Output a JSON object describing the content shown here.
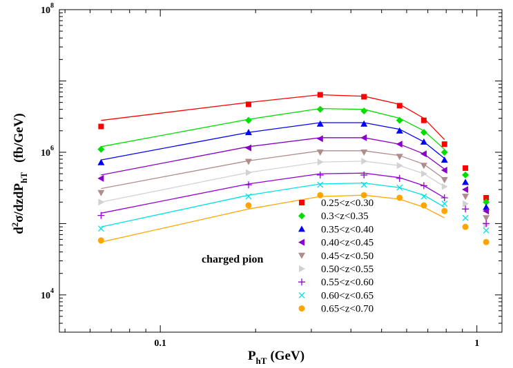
{
  "chart_data": {
    "type": "scatter",
    "title": "",
    "xlabel": "P",
    "xlabel_sub": "hT",
    "xlabel_unit": "(GeV)",
    "ylabel_main": "d",
    "ylabel_sup": "2",
    "ylabel_mid": "σ/dzdP",
    "ylabel_sub": "hT",
    "ylabel_unit": "(fb/GeV)",
    "xscale": "log",
    "yscale": "log",
    "xlim": [
      0.048,
      1.2
    ],
    "ylim": [
      3000,
      100000000
    ],
    "x_ticks": [
      {
        "value": 0.1,
        "label": "0.1"
      },
      {
        "value": 1,
        "label": "1"
      }
    ],
    "y_ticks": [
      {
        "value": 10000,
        "base": "10",
        "exp": "4"
      },
      {
        "value": 1000000,
        "base": "10",
        "exp": "6"
      },
      {
        "value": 100000000,
        "base": "10",
        "exp": "8"
      }
    ],
    "grid": false,
    "legend_position": "bottom-center",
    "annotation": "charged pion",
    "x": [
      0.065,
      0.19,
      0.32,
      0.44,
      0.57,
      0.68,
      0.79,
      0.92,
      1.07
    ],
    "curve_x": [
      0.065,
      0.19,
      0.32,
      0.44,
      0.57,
      0.68,
      0.79
    ],
    "series": [
      {
        "name": "0.25<z<0.30",
        "color": "#ff0000",
        "marker": "square",
        "values": [
          2300000,
          4700000,
          6400000,
          6000000,
          4500000,
          2800000,
          1300000,
          600000,
          230000
        ],
        "curve": [
          2800000,
          5000000,
          6400000,
          6100000,
          4700000,
          3000000,
          1500000
        ]
      },
      {
        "name": "0.3<z<0.35",
        "color": "#00dd00",
        "marker": "diamond",
        "values": [
          1100000,
          2800000,
          4000000,
          3800000,
          2800000,
          1900000,
          1000000,
          480000,
          200000
        ],
        "curve": [
          1200000,
          2900000,
          4100000,
          4000000,
          3000000,
          2000000,
          1100000
        ]
      },
      {
        "name": "0.35<z<0.40",
        "color": "#0000ff",
        "marker": "triangle-up",
        "values": [
          720000,
          1900000,
          2500000,
          2500000,
          2000000,
          1400000,
          780000,
          380000,
          170000
        ],
        "curve": [
          780000,
          1900000,
          2600000,
          2600000,
          2100000,
          1400000,
          820000
        ]
      },
      {
        "name": "0.40<z<0.45",
        "color": "#8a00c8",
        "marker": "triangle-left",
        "values": [
          430000,
          1150000,
          1550000,
          1600000,
          1300000,
          950000,
          560000,
          300000,
          150000
        ],
        "curve": [
          480000,
          1200000,
          1600000,
          1600000,
          1300000,
          950000,
          580000
        ]
      },
      {
        "name": "0.45<z<0.50",
        "color": "#b08c8c",
        "marker": "triangle-down",
        "values": [
          270000,
          740000,
          1000000,
          1000000,
          870000,
          650000,
          410000,
          240000,
          120000
        ],
        "curve": [
          310000,
          760000,
          1050000,
          1050000,
          900000,
          680000,
          420000
        ]
      },
      {
        "name": "0.50<z<0.55",
        "color": "#d2d2d2",
        "marker": "triangle-right",
        "values": [
          200000,
          520000,
          730000,
          750000,
          650000,
          500000,
          330000,
          190000,
          95000
        ],
        "curve": [
          200000,
          520000,
          730000,
          750000,
          650000,
          500000,
          330000
        ]
      },
      {
        "name": "0.55<z<0.60",
        "color": "#9400d3",
        "marker": "plus",
        "values": [
          130000,
          350000,
          480000,
          480000,
          430000,
          340000,
          230000,
          160000,
          100000
        ],
        "curve": [
          140000,
          360000,
          500000,
          510000,
          440000,
          340000,
          230000
        ]
      },
      {
        "name": "0.60<z<0.65",
        "color": "#00e0e8",
        "marker": "x",
        "values": [
          85000,
          240000,
          350000,
          350000,
          320000,
          240000,
          190000,
          120000,
          80000
        ],
        "curve": [
          90000,
          250000,
          360000,
          370000,
          320000,
          250000,
          170000
        ]
      },
      {
        "name": "0.65<z<0.70",
        "color": "#ffa500",
        "marker": "circle",
        "values": [
          58000,
          180000,
          250000,
          250000,
          230000,
          180000,
          150000,
          90000,
          55000
        ],
        "curve": [
          55000,
          160000,
          240000,
          250000,
          220000,
          170000,
          120000
        ]
      }
    ]
  }
}
